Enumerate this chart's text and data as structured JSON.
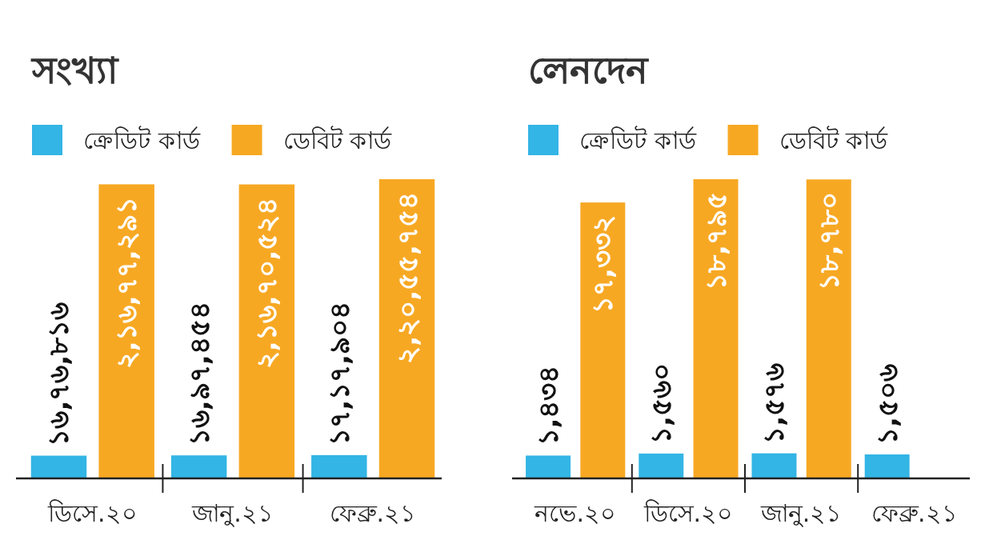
{
  "chart_data": [
    {
      "type": "bar",
      "title": "সংখ্যা",
      "legend": "top left",
      "categories": [
        "ডিসে.২০",
        "জানু.২১",
        "ফেব্রু.২১"
      ],
      "series": [
        {
          "name": "ক্রেডিট কার্ড",
          "color": "#33b5e5",
          "values": [
            1676816,
            1697454,
            1717904
          ],
          "value_labels": [
            "১৬,৭৬,৮১৬",
            "১৬,৯৭,৪৫৪",
            "১৭,১৭,৯০৪"
          ]
        },
        {
          "name": "ডেবিট কার্ড",
          "color": "#f7a823",
          "values": [
            21677291,
            21670524,
            22055754
          ],
          "value_labels": [
            "২,১৬,৭৭,২৯১",
            "২,১৬,৭০,৫২৪",
            "২,২০,৫৫,৭৫৪"
          ]
        }
      ]
    },
    {
      "type": "bar",
      "title": "লেনদেন",
      "legend": "top left",
      "categories": [
        "নভে.২০",
        "ডিসে.২০",
        "জানু.২১",
        "ফেব্রু.২১"
      ],
      "series": [
        {
          "name": "ক্রেডিট কার্ড",
          "color": "#33b5e5",
          "values": [
            1434,
            1560,
            1576,
            1506
          ],
          "value_labels": [
            "১,৪৩৪",
            "১,৫৬০",
            "১,৫৭৬",
            "১,৫০৬"
          ]
        },
        {
          "name": "ডেবিট কার্ড",
          "color": "#f7a823",
          "values": [
            17332,
            18795,
            18780,
            null
          ],
          "value_labels": [
            "১৭,৩৩২",
            "১৮,৭৯৫",
            "১৮,৭৮০",
            null
          ]
        }
      ]
    }
  ]
}
